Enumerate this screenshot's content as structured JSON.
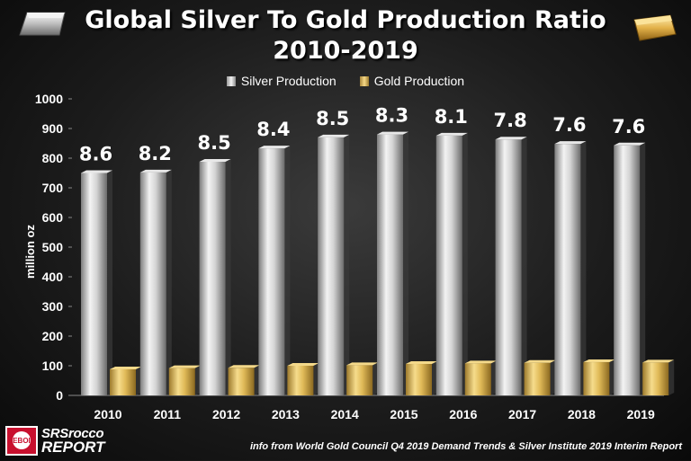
{
  "title_line1": "Global Silver To Gold Production Ratio",
  "title_line2": "2010-2019",
  "legend": {
    "silver": "Silver Production",
    "gold": "Gold Production"
  },
  "logo": {
    "line1": "SRSrocco",
    "line2": "REPORT",
    "badge": "EBOI"
  },
  "source": "info from World Gold Council Q4 2019 Demand Trends & Silver Institute 2019 Interim Report",
  "colors": {
    "silver": "#d8d8d8",
    "gold": "#e2bd5c",
    "logo_red": "#c8102e"
  },
  "chart_data": {
    "type": "bar",
    "title": "Global Silver To Gold Production Ratio 2010-2019",
    "ylabel": "million oz",
    "xlabel": "",
    "ylim": [
      0,
      1000
    ],
    "yticks": [
      0,
      100,
      200,
      300,
      400,
      500,
      600,
      700,
      800,
      900,
      1000
    ],
    "categories": [
      "2010",
      "2011",
      "2012",
      "2013",
      "2014",
      "2015",
      "2016",
      "2017",
      "2018",
      "2019"
    ],
    "series": [
      {
        "name": "Silver Production",
        "values": [
          750,
          752,
          788,
          833,
          870,
          880,
          876,
          863,
          848,
          843
        ]
      },
      {
        "name": "Gold Production",
        "values": [
          88,
          92,
          93,
          100,
          102,
          106,
          108,
          110,
          112,
          111
        ]
      }
    ],
    "ratio_labels": [
      "8.6",
      "8.2",
      "8.5",
      "8.4",
      "8.5",
      "8.3",
      "8.1",
      "7.8",
      "7.6",
      "7.6"
    ]
  }
}
